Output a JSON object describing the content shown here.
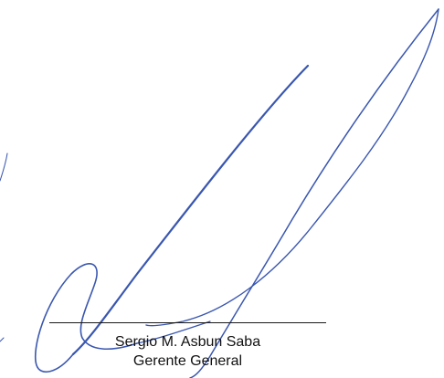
{
  "signature_block": {
    "name": "Sergio M. Asbun Saba",
    "title": "Gerente General",
    "ink_color": "#3a57b0",
    "line_color": "#1a1a1a"
  }
}
